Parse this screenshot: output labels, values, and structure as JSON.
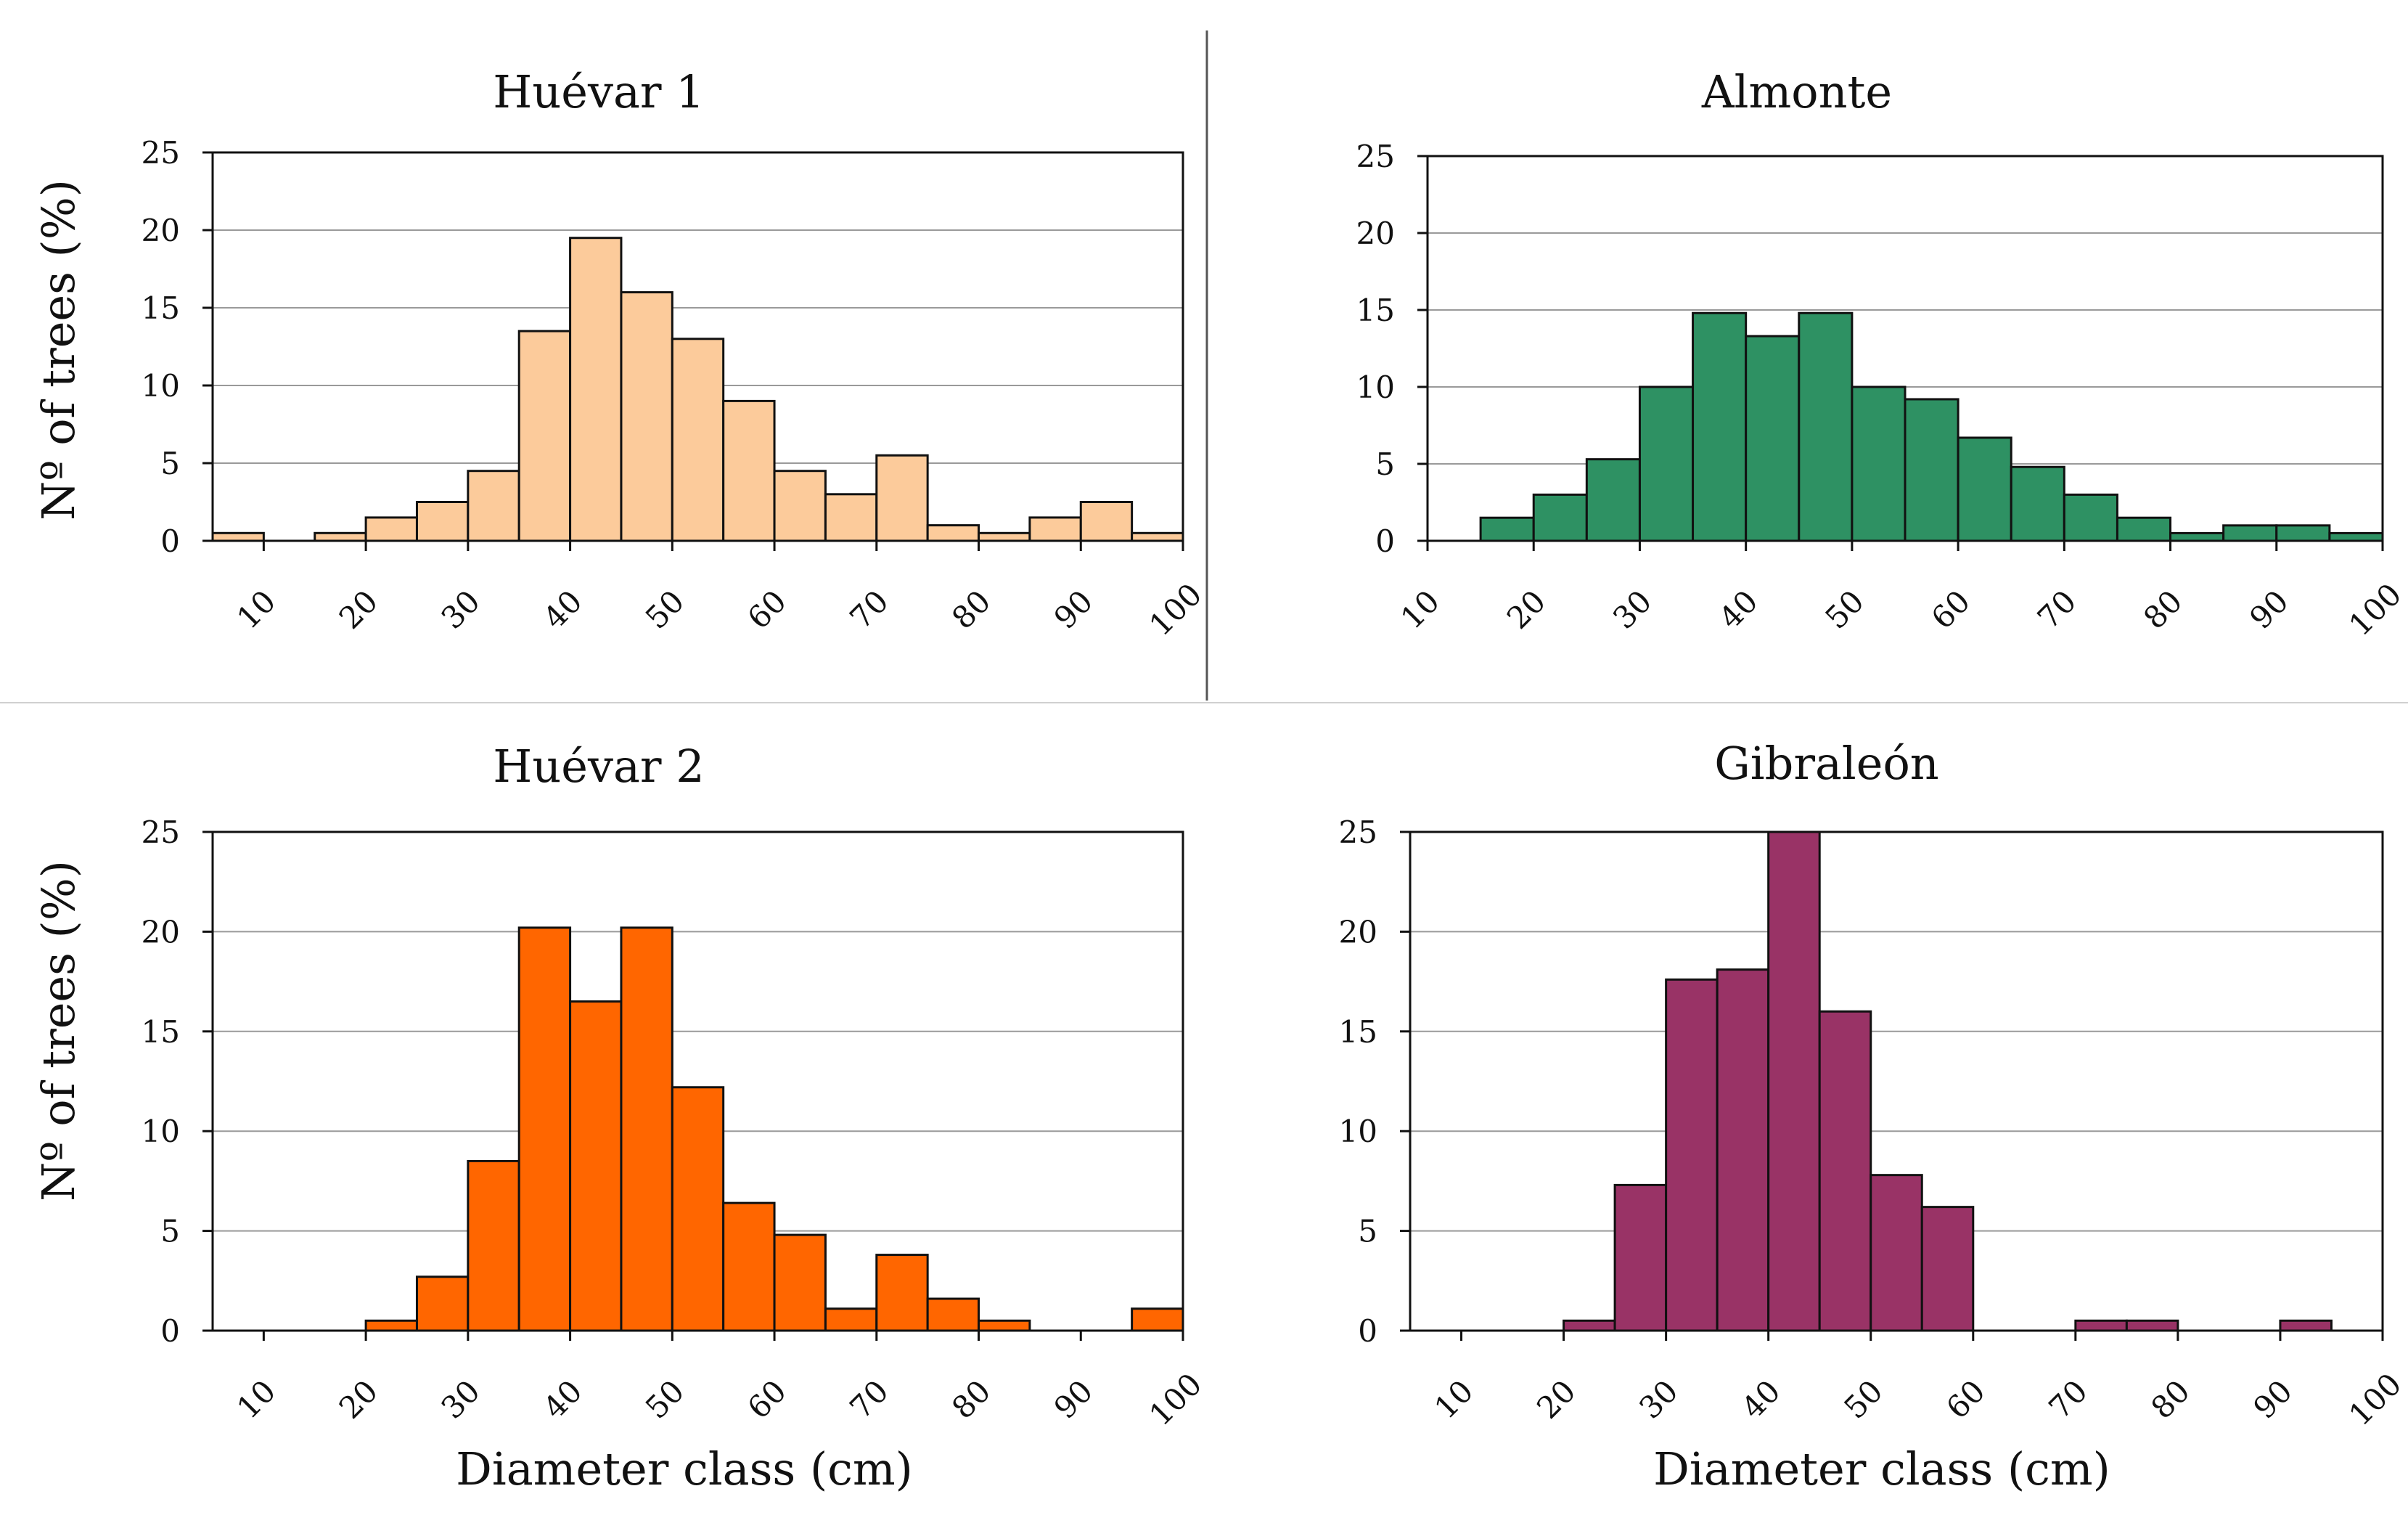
{
  "figure": {
    "background": "#ffffff",
    "divider_color": "#555555",
    "grid_color": "#9a9a9a"
  },
  "chart_data": [
    {
      "id": "huevar1",
      "type": "bar",
      "title": "Huévar 1",
      "ylabel": "Nº of trees (%)",
      "xlabel": "",
      "ylim": [
        0,
        25
      ],
      "xlim": [
        5,
        100
      ],
      "yticks": [
        "0",
        "5",
        "10",
        "15",
        "20",
        "25"
      ],
      "xticks": [
        "10",
        "20",
        "30",
        "40",
        "50",
        "60",
        "70",
        "80",
        "90",
        "100"
      ],
      "bin_width": 5,
      "bin_starts": [
        5,
        10,
        15,
        20,
        25,
        30,
        35,
        40,
        45,
        50,
        55,
        60,
        65,
        70,
        75,
        80,
        85,
        90,
        95
      ],
      "values": [
        0.5,
        0,
        0.5,
        1.5,
        2.5,
        4.5,
        13.5,
        19.5,
        16,
        13,
        9,
        4.5,
        3,
        5.5,
        1,
        0.5,
        1.5,
        2.5,
        0.5
      ],
      "color": "#fccb9b",
      "frame": "box",
      "grid": "major y"
    },
    {
      "id": "almonte",
      "type": "bar",
      "title": "Almonte",
      "ylabel": "",
      "xlabel": "",
      "ylim": [
        0,
        25
      ],
      "xlim": [
        10,
        100
      ],
      "yticks": [
        "0",
        "5",
        "10",
        "15",
        "20",
        "25"
      ],
      "xticks": [
        "10",
        "20",
        "30",
        "40",
        "50",
        "60",
        "70",
        "80",
        "90",
        "100"
      ],
      "bin_width": 5,
      "bin_starts": [
        15,
        20,
        25,
        30,
        35,
        40,
        45,
        50,
        55,
        60,
        65,
        70,
        75,
        80,
        85,
        90,
        95
      ],
      "values": [
        1.5,
        3,
        5.3,
        10,
        14.8,
        13.3,
        14.8,
        10,
        9.2,
        6.7,
        4.8,
        3,
        1.5,
        0.5,
        1,
        1,
        0.5
      ],
      "color": "#2e9163",
      "frame": "box",
      "grid": "major y"
    },
    {
      "id": "huevar2",
      "type": "bar",
      "title": "Huévar 2",
      "ylabel": "Nº of trees (%)",
      "xlabel": "Diameter class (cm)",
      "ylim": [
        0,
        25
      ],
      "xlim": [
        5,
        100
      ],
      "yticks": [
        "0",
        "5",
        "10",
        "15",
        "20",
        "25"
      ],
      "xticks": [
        "10",
        "20",
        "30",
        "40",
        "50",
        "60",
        "70",
        "80",
        "90",
        "100"
      ],
      "bin_width": 5,
      "bin_starts": [
        20,
        25,
        30,
        35,
        40,
        45,
        50,
        55,
        60,
        65,
        70,
        75,
        80,
        85,
        90,
        95
      ],
      "values": [
        0.5,
        2.7,
        8.5,
        20.2,
        16.5,
        20.2,
        12.2,
        6.4,
        4.8,
        1.1,
        3.8,
        1.6,
        0.5,
        0,
        0,
        1.1
      ],
      "color": "#ff6600",
      "frame": "box",
      "grid": "major y"
    },
    {
      "id": "gibraleon",
      "type": "bar",
      "title": "Gibraleón",
      "ylabel": "",
      "xlabel": "Diameter class (cm)",
      "ylim": [
        0,
        25
      ],
      "xlim": [
        5,
        100
      ],
      "yticks": [
        "0",
        "5",
        "10",
        "15",
        "20",
        "25"
      ],
      "xticks": [
        "10",
        "20",
        "30",
        "40",
        "50",
        "60",
        "70",
        "80",
        "90",
        "100"
      ],
      "bin_width": 5,
      "bin_starts": [
        20,
        25,
        30,
        35,
        40,
        45,
        50,
        55,
        60,
        65,
        70,
        75,
        80,
        85,
        90
      ],
      "values": [
        0.5,
        7.3,
        17.6,
        18.1,
        25,
        16,
        7.8,
        6.2,
        0,
        0,
        0.5,
        0.5,
        0,
        0,
        0.5
      ],
      "color": "#993366",
      "frame": "box",
      "grid": "major y"
    }
  ]
}
